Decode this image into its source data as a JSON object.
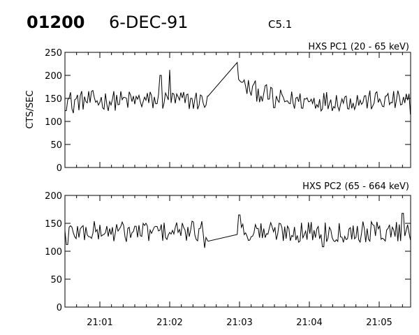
{
  "header": {
    "id": "01200",
    "date": "6-DEC-91",
    "flare_class": "C5.1"
  },
  "chart_data": [
    {
      "type": "line",
      "title": "HXS PC1 (20 - 65 keV)",
      "ylabel": "CTS/SEC",
      "ylim": [
        0,
        250
      ],
      "yticks": [
        0,
        50,
        100,
        150,
        200,
        250
      ],
      "xlim": [
        "21:00:30",
        "21:05:27"
      ],
      "xticks": [
        "21:01",
        "21:02",
        "21:03",
        "21:04",
        "21:05"
      ],
      "series": [
        {
          "baseline": 145,
          "noise": 14,
          "gap": [
            "21:02:33",
            "21:02:58"
          ],
          "gap_end_values": [
            155,
            228
          ],
          "features": [
            {
              "t": "21:00:37",
              "value": 118
            },
            {
              "t": "21:01:52",
              "value": 200
            },
            {
              "t": "21:02:00",
              "value": 212
            },
            {
              "t": "21:02:33",
              "value": 155
            },
            {
              "t": "21:02:58",
              "value": 228
            },
            {
              "t": "21:03:02",
              "value": 185
            },
            {
              "t": "21:03:30",
              "value": 130
            },
            {
              "t": "21:05:27",
              "value": 115
            }
          ]
        }
      ]
    },
    {
      "type": "line",
      "title": "HXS PC2 (65 - 664 keV)",
      "ylabel": "",
      "ylim": [
        0,
        200
      ],
      "yticks": [
        0,
        50,
        100,
        150,
        200
      ],
      "xlim": [
        "21:00:30",
        "21:05:27"
      ],
      "xticks": [
        "21:01",
        "21:02",
        "21:03",
        "21:04",
        "21:05"
      ],
      "series": [
        {
          "baseline": 135,
          "noise": 12,
          "gap": [
            "21:02:33",
            "21:02:58"
          ],
          "gap_end_values": [
            118,
            130
          ],
          "features": [
            {
              "t": "21:00:32",
              "value": 112
            },
            {
              "t": "21:02:30",
              "value": 106
            },
            {
              "t": "21:03:00",
              "value": 165
            },
            {
              "t": "21:04:12",
              "value": 108
            },
            {
              "t": "21:05:20",
              "value": 168
            }
          ]
        }
      ]
    }
  ]
}
